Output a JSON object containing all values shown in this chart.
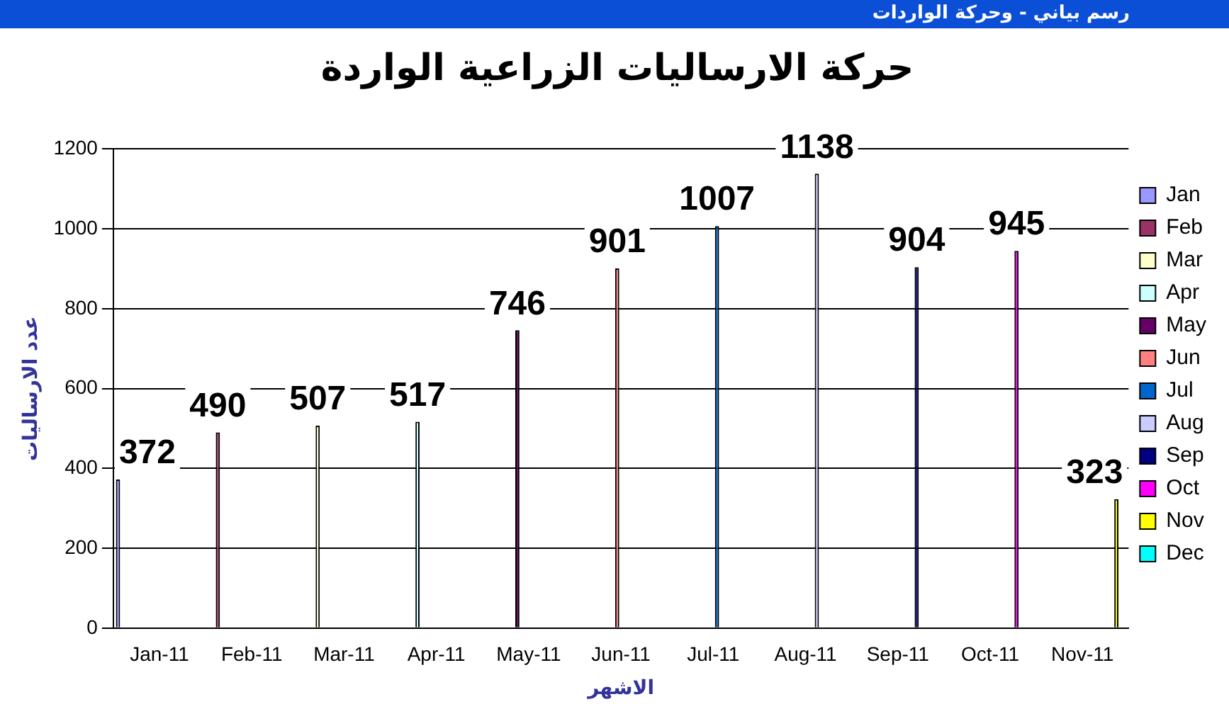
{
  "chart_data": {
    "type": "bar",
    "title": "حركة الارساليات الزراعية الواردة",
    "xlabel": "الاشهر",
    "ylabel": "عدد الارساليات",
    "annotations": [
      "رسم بياني - وحركة الواردات"
    ],
    "categories": [
      "Jan-11",
      "Feb-11",
      "Mar-11",
      "Apr-11",
      "May-11",
      "Jun-11",
      "Jul-11",
      "Aug-11",
      "Sep-11",
      "Oct-11",
      "Nov-11"
    ],
    "series": [
      {
        "name": "Jan",
        "color": "#9999ff",
        "values": [
          372,
          null,
          null,
          null,
          null,
          null,
          null,
          null,
          null,
          null,
          null
        ]
      },
      {
        "name": "Feb",
        "color": "#993366",
        "values": [
          null,
          490,
          null,
          null,
          null,
          null,
          null,
          null,
          null,
          null,
          null
        ]
      },
      {
        "name": "Mar",
        "color": "#ffffcc",
        "values": [
          null,
          null,
          507,
          null,
          null,
          null,
          null,
          null,
          null,
          null,
          null
        ]
      },
      {
        "name": "Apr",
        "color": "#ccffff",
        "values": [
          null,
          null,
          null,
          517,
          null,
          null,
          null,
          null,
          null,
          null,
          null
        ]
      },
      {
        "name": "May",
        "color": "#660066",
        "values": [
          null,
          null,
          null,
          null,
          746,
          null,
          null,
          null,
          null,
          null,
          null
        ]
      },
      {
        "name": "Jun",
        "color": "#ff8080",
        "values": [
          null,
          null,
          null,
          null,
          null,
          901,
          null,
          null,
          null,
          null,
          null
        ]
      },
      {
        "name": "Jul",
        "color": "#0066cc",
        "values": [
          null,
          null,
          null,
          null,
          null,
          null,
          1007,
          null,
          null,
          null,
          null
        ]
      },
      {
        "name": "Aug",
        "color": "#ccccff",
        "values": [
          null,
          null,
          null,
          null,
          null,
          null,
          null,
          1138,
          null,
          null,
          null
        ]
      },
      {
        "name": "Sep",
        "color": "#000080",
        "values": [
          null,
          null,
          null,
          null,
          null,
          null,
          null,
          null,
          904,
          null,
          null
        ]
      },
      {
        "name": "Oct",
        "color": "#ff00ff",
        "values": [
          null,
          null,
          null,
          null,
          null,
          null,
          null,
          null,
          null,
          945,
          null
        ]
      },
      {
        "name": "Nov",
        "color": "#ffff00",
        "values": [
          null,
          null,
          null,
          null,
          null,
          null,
          null,
          null,
          null,
          null,
          323
        ]
      },
      {
        "name": "Dec",
        "color": "#00ffff",
        "values": [
          null,
          null,
          null,
          null,
          null,
          null,
          null,
          null,
          null,
          null,
          null
        ]
      }
    ],
    "ylim": [
      0,
      1200
    ],
    "yticks": [
      0,
      200,
      400,
      600,
      800,
      1000,
      1200
    ],
    "grid": "y",
    "legend": "right",
    "data_labels": true
  }
}
